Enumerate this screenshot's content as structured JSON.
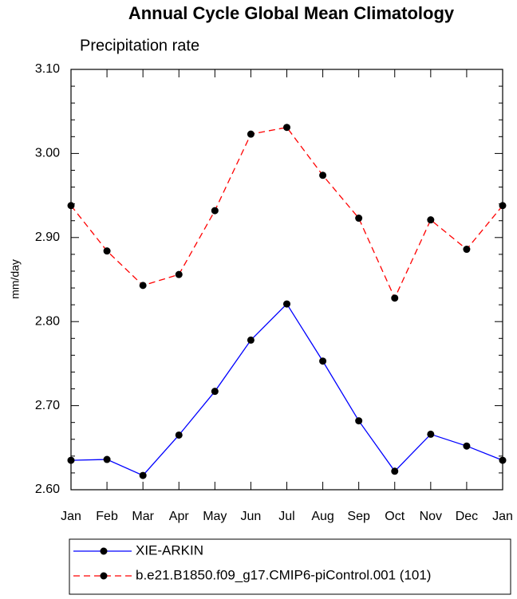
{
  "chart_data": {
    "type": "line",
    "title": "Annual Cycle Global Mean Climatology",
    "subtitle": "Precipitation rate",
    "y_label": "mm/day",
    "categories": [
      "Jan",
      "Feb",
      "Mar",
      "Apr",
      "May",
      "Jun",
      "Jul",
      "Aug",
      "Sep",
      "Oct",
      "Nov",
      "Dec",
      "Jan"
    ],
    "series": [
      {
        "name": "XIE-ARKIN",
        "color": "#0000ff",
        "dash": "none",
        "values": [
          2.635,
          2.636,
          2.617,
          2.665,
          2.717,
          2.778,
          2.821,
          2.753,
          2.682,
          2.622,
          2.666,
          2.652,
          2.635
        ]
      },
      {
        "name": "b.e21.B1850.f09_g17.CMIP6-piControl.001 (101)",
        "color": "#ff0000",
        "dash": "8,5",
        "values": [
          2.938,
          2.884,
          2.843,
          2.856,
          2.932,
          3.023,
          3.031,
          2.974,
          2.923,
          2.828,
          2.921,
          2.886,
          2.938
        ]
      }
    ],
    "ylim": [
      2.6,
      3.1
    ],
    "yticks": [
      {
        "value": 2.6,
        "label": "2.60"
      },
      {
        "value": 2.7,
        "label": "2.70"
      },
      {
        "value": 2.8,
        "label": "2.80"
      },
      {
        "value": 2.9,
        "label": "2.90"
      },
      {
        "value": 3.0,
        "label": "3.00"
      },
      {
        "value": 3.1,
        "label": "3.10"
      }
    ],
    "yminorticks": [
      2.62,
      2.64,
      2.66,
      2.68,
      2.72,
      2.74,
      2.76,
      2.78,
      2.82,
      2.84,
      2.86,
      2.88,
      2.92,
      2.94,
      2.96,
      2.98,
      3.02,
      3.04,
      3.06,
      3.08
    ],
    "legend": "bottom"
  }
}
